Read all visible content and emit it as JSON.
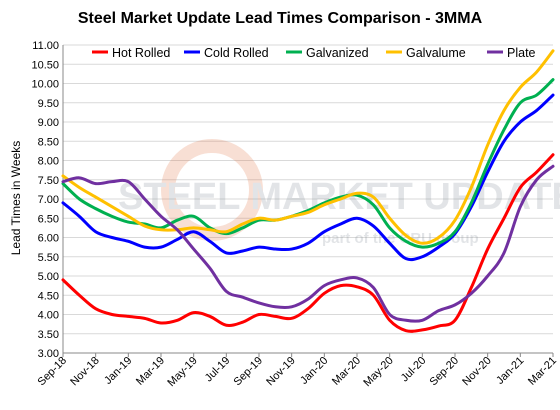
{
  "chart_data": {
    "type": "line",
    "title": "Steel Market Update Lead Times Comparison - 3MMA",
    "xlabel": "",
    "ylabel": "Lead Times in Weeks",
    "ylim": [
      3.0,
      11.0
    ],
    "yticks": [
      "3.00",
      "3.50",
      "4.00",
      "4.50",
      "5.00",
      "5.50",
      "6.00",
      "6.50",
      "7.00",
      "7.50",
      "8.00",
      "8.50",
      "9.00",
      "9.50",
      "10.00",
      "10.50",
      "11.00"
    ],
    "x": [
      "Sep-18",
      "Oct-18",
      "Nov-18",
      "Dec-18",
      "Jan-19",
      "Feb-19",
      "Mar-19",
      "Apr-19",
      "May-19",
      "Jun-19",
      "Jul-19",
      "Aug-19",
      "Sep-19",
      "Oct-19",
      "Nov-19",
      "Dec-19",
      "Jan-20",
      "Feb-20",
      "Mar-20",
      "Apr-20",
      "May-20",
      "Jun-20",
      "Jul-20",
      "Aug-20",
      "Sep-20",
      "Oct-20",
      "Nov-20",
      "Dec-20",
      "Jan-21",
      "Feb-21",
      "Mar-21"
    ],
    "xticks": [
      "Sep-18",
      "Nov-18",
      "Jan-19",
      "Mar-19",
      "May-19",
      "Jul-19",
      "Sep-19",
      "Nov-19",
      "Jan-20",
      "Mar-20",
      "May-20",
      "Jul-20",
      "Sep-20",
      "Nov-20",
      "Jan-21",
      "Mar-21"
    ],
    "legend_position": "top",
    "grid": true,
    "series": [
      {
        "name": "Hot Rolled",
        "color": "#ff0000",
        "values": [
          4.9,
          4.5,
          4.15,
          4.0,
          3.95,
          3.9,
          3.78,
          3.85,
          4.05,
          3.95,
          3.72,
          3.8,
          4.0,
          3.95,
          3.9,
          4.15,
          4.55,
          4.75,
          4.72,
          4.5,
          3.85,
          3.58,
          3.6,
          3.7,
          3.85,
          4.7,
          5.7,
          6.5,
          7.3,
          7.7,
          8.15
        ]
      },
      {
        "name": "Cold Rolled",
        "color": "#0000ff",
        "values": [
          6.9,
          6.55,
          6.15,
          6.0,
          5.9,
          5.75,
          5.75,
          5.95,
          6.15,
          5.9,
          5.6,
          5.65,
          5.75,
          5.7,
          5.7,
          5.85,
          6.15,
          6.35,
          6.5,
          6.3,
          5.85,
          5.45,
          5.5,
          5.75,
          6.1,
          6.8,
          7.7,
          8.5,
          9.0,
          9.3,
          9.7
        ]
      },
      {
        "name": "Galvanized",
        "color": "#00b050",
        "values": [
          7.4,
          7.0,
          6.75,
          6.55,
          6.4,
          6.35,
          6.25,
          6.45,
          6.55,
          6.25,
          6.1,
          6.25,
          6.45,
          6.45,
          6.55,
          6.7,
          6.9,
          7.05,
          7.1,
          6.85,
          6.25,
          5.9,
          5.75,
          5.85,
          6.15,
          6.9,
          7.9,
          8.8,
          9.5,
          9.7,
          10.1
        ]
      },
      {
        "name": "Galvalume",
        "color": "#ffc000",
        "values": [
          7.6,
          7.3,
          7.05,
          6.8,
          6.55,
          6.3,
          6.2,
          6.2,
          6.25,
          6.2,
          6.15,
          6.35,
          6.5,
          6.45,
          6.55,
          6.65,
          6.85,
          7.0,
          7.15,
          7.05,
          6.5,
          6.05,
          5.85,
          6.0,
          6.45,
          7.3,
          8.4,
          9.3,
          9.9,
          10.3,
          10.85
        ]
      },
      {
        "name": "Plate",
        "color": "#7030a0",
        "values": [
          7.45,
          7.55,
          7.4,
          7.45,
          7.45,
          7.0,
          6.55,
          6.2,
          5.7,
          5.2,
          4.6,
          4.45,
          4.3,
          4.2,
          4.2,
          4.4,
          4.75,
          4.9,
          4.95,
          4.7,
          4.0,
          3.85,
          3.85,
          4.1,
          4.25,
          4.55,
          5.0,
          5.6,
          6.8,
          7.5,
          7.85
        ]
      }
    ]
  },
  "watermark": {
    "brand": "STEEL MARKET UPDATE",
    "tagline": "part of the CRU group"
  }
}
